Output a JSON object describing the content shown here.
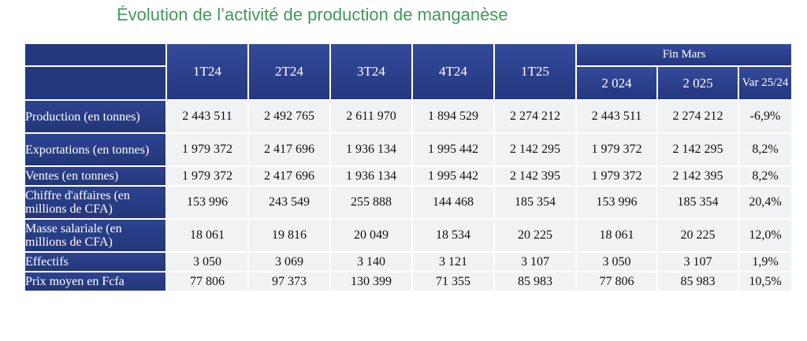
{
  "title": "Évolution de l’activité de production de manganèse",
  "header": {
    "columns": [
      "1T24",
      "2T24",
      "3T24",
      "4T24",
      "1T25"
    ],
    "group_label": "Fin Mars",
    "sub_columns": [
      "2 024",
      "2 025",
      "Var 25/24"
    ]
  },
  "rows": [
    {
      "label": "Production (en tonnes)",
      "values": [
        "2 443 511",
        "2 492 765",
        "2 611 970",
        "1 894 529",
        "2 274 212",
        "2 443 511",
        "2 274 212",
        "-6,9%"
      ]
    },
    {
      "label": "Exportations (en tonnes)",
      "values": [
        "1 979 372",
        "2 417 696",
        "1 936 134",
        "1 995 442",
        "2 142 295",
        "1 979 372",
        "2 142 295",
        "8,2%"
      ]
    },
    {
      "label": "Ventes (en tonnes)",
      "values": [
        "1 979 372",
        "2 417 696",
        "1 936 134",
        "1 995 442",
        "2 142 395",
        "1 979 372",
        "2 142 395",
        "8,2%"
      ]
    },
    {
      "label": "Chiffre d'affaires (en millions de CFA)",
      "values": [
        "153 996",
        "243 549",
        "255 888",
        "144 468",
        "185 354",
        "153 996",
        "185 354",
        "20,4%"
      ]
    },
    {
      "label": "Masse salariale (en millions de CFA)",
      "values": [
        "18 061",
        "19 816",
        "20 049",
        "18 534",
        "20 225",
        "18 061",
        "20 225",
        "12,0%"
      ]
    },
    {
      "label": "Effectifs",
      "values": [
        "3 050",
        "3 069",
        "3 140",
        "3 121",
        "3 107",
        "3 050",
        "3 107",
        "1,9%"
      ]
    },
    {
      "label": "Prix moyen en Fcfa",
      "values": [
        "77 806",
        "97 373",
        "130 399",
        "71 355",
        "85 983",
        "77 806",
        "85 983",
        "10,5%"
      ]
    }
  ]
}
